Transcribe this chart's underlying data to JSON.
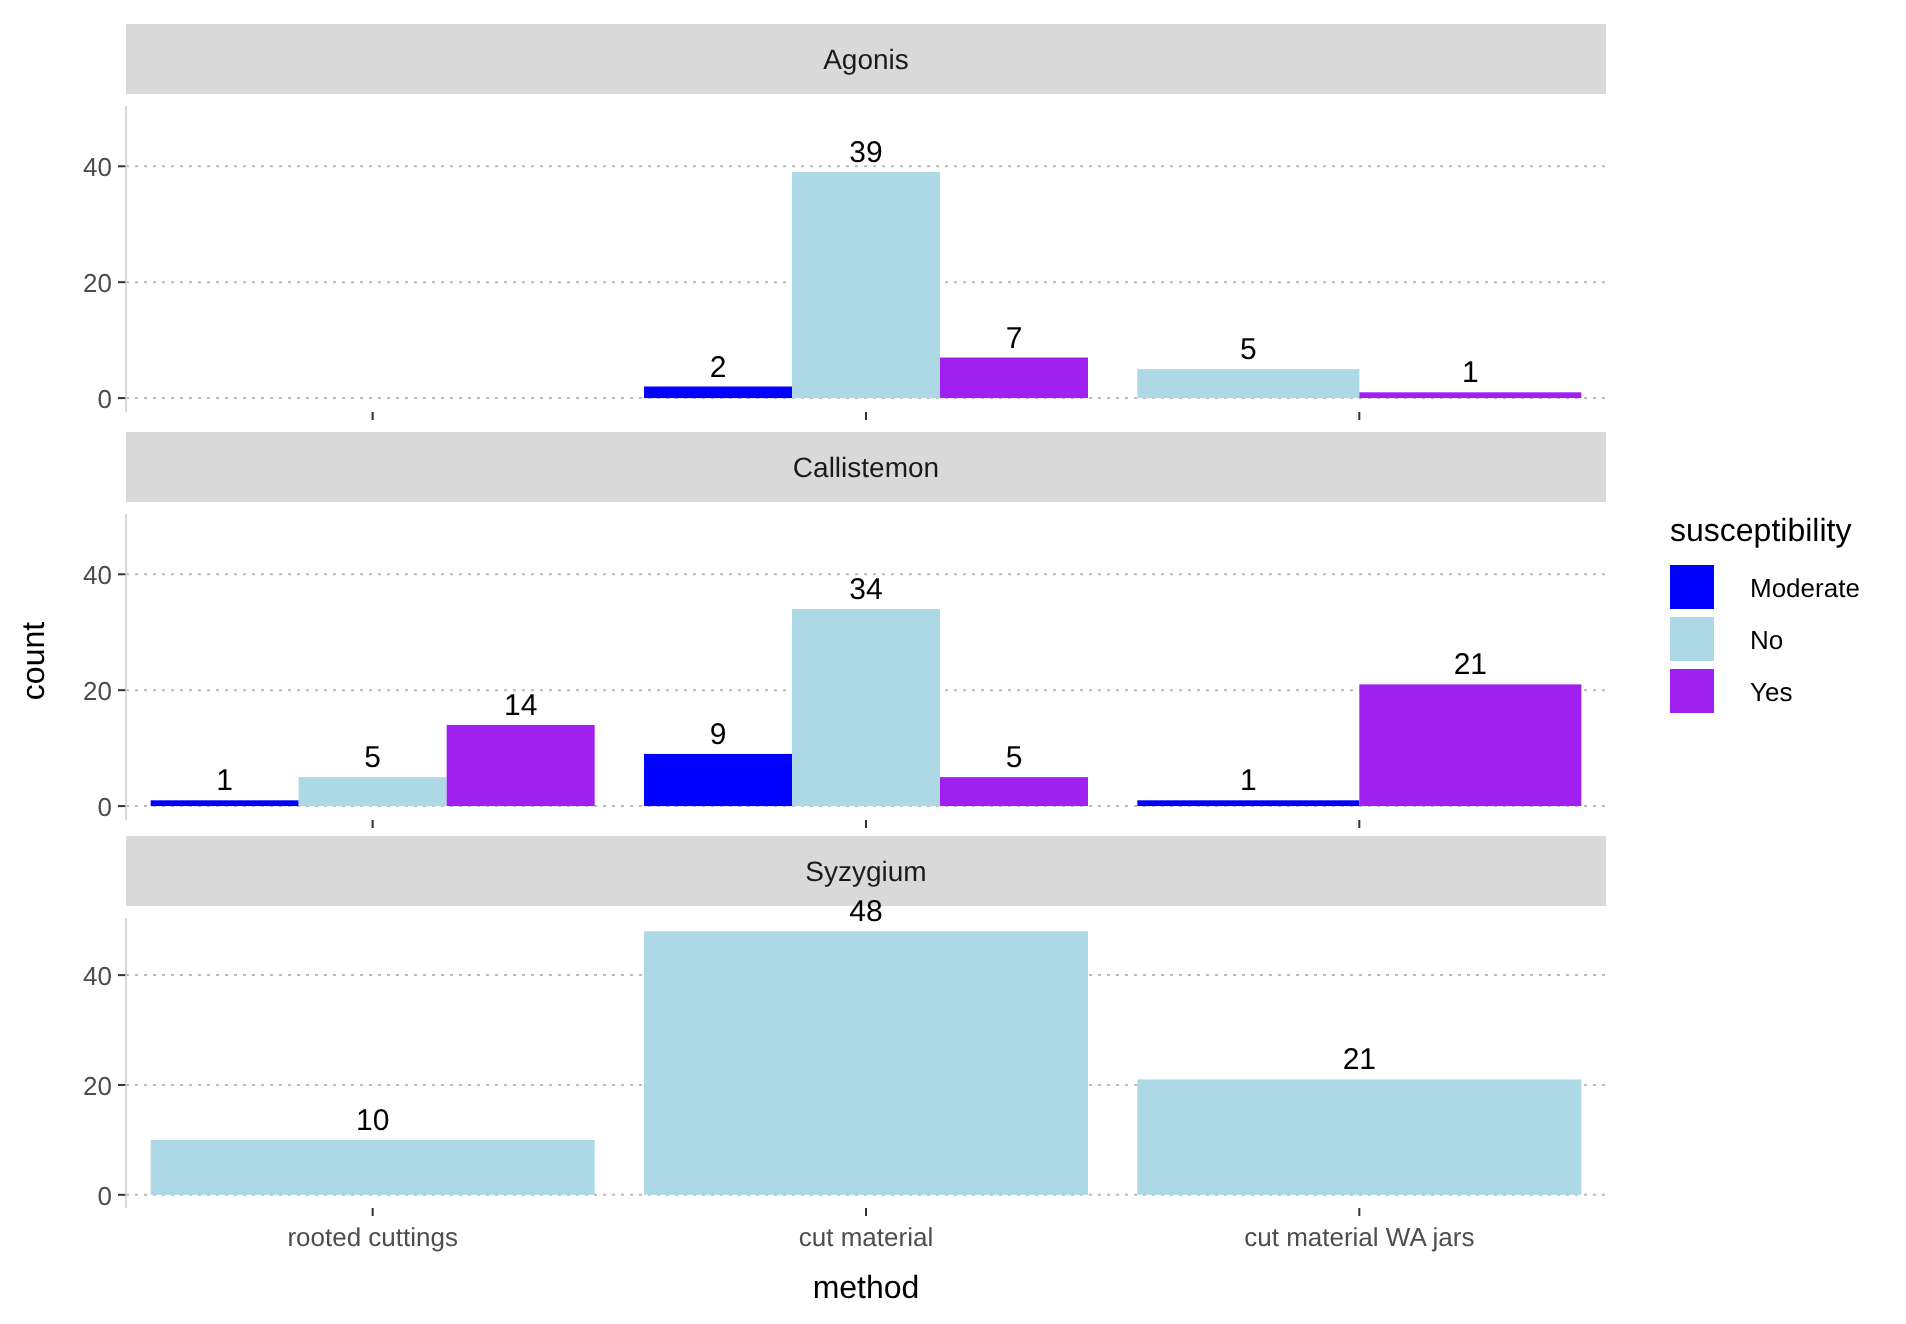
{
  "chart_data": [
    {
      "type": "bar",
      "title": "Agonis",
      "categories": [
        null,
        null,
        null
      ],
      "series": [
        {
          "color": "#0000ff",
          "values": [
            null,
            2,
            null
          ]
        },
        {
          "color": "#add8e6",
          "values": [
            null,
            39,
            5
          ]
        },
        {
          "color": "#a020f0",
          "values": [
            null,
            7,
            1
          ]
        }
      ],
      "ylim": [
        -2.4,
        50.4
      ],
      "yticks": [
        0,
        20,
        40
      ],
      "grid": "y",
      "data_labels": true,
      "tick_labels": "y",
      "legend": false
    },
    {
      "type": "bar",
      "title": "Callistemon",
      "ylabel": "count",
      "legend_title": "susceptibility",
      "categories": [
        null,
        null,
        null
      ],
      "series": [
        {
          "name": "Moderate",
          "color": "#0000ff",
          "values": [
            1,
            9,
            1
          ]
        },
        {
          "name": "No",
          "color": "#add8e6",
          "values": [
            5,
            34,
            null
          ]
        },
        {
          "name": "Yes",
          "color": "#a020f0",
          "values": [
            14,
            5,
            21
          ]
        }
      ],
      "ylim": [
        -2.4,
        50.4
      ],
      "yticks": [
        0,
        20,
        40
      ],
      "grid": "y",
      "data_labels": true,
      "tick_labels": "y",
      "legend": "right"
    },
    {
      "type": "bar",
      "title": "Syzygium",
      "xlabel": "method",
      "categories": [
        "rooted cuttings",
        "cut material",
        "cut material WA jars"
      ],
      "series": [
        {
          "color": "#add8e6",
          "values": [
            10,
            48,
            21
          ]
        }
      ],
      "ylim": [
        -2.4,
        50.4
      ],
      "yticks": [
        0,
        20,
        40
      ],
      "grid": "y",
      "data_labels": true,
      "legend": false
    }
  ]
}
